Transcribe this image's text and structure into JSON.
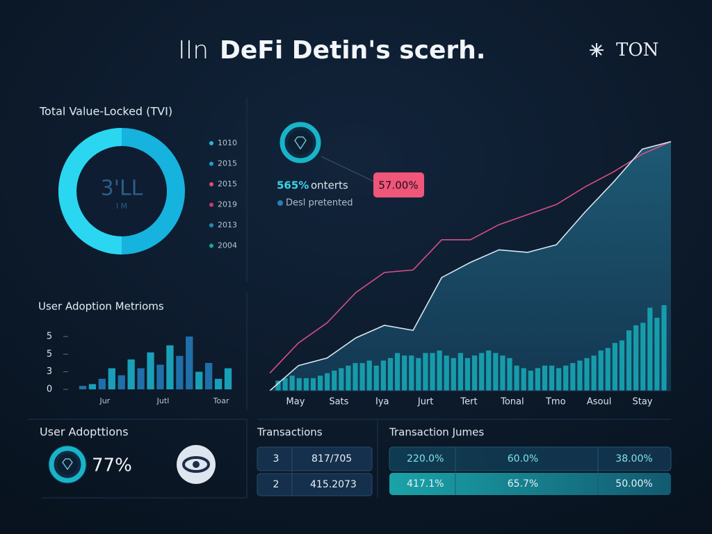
{
  "header": {
    "prefix": "IIn",
    "title": "DeFi Detin's scerh.",
    "brand": "TON"
  },
  "tvl": {
    "title": "Total Value-Locked (TVI)",
    "center": "3'LL",
    "center_sub": "I M",
    "legend": [
      {
        "label": "1010",
        "color": "#22b8e0"
      },
      {
        "label": "2015",
        "color": "#1f9fd0"
      },
      {
        "label": "2015",
        "color": "#e04a7a"
      },
      {
        "label": "2019",
        "color": "#c43f72"
      },
      {
        "label": "2013",
        "color": "#1a8fb8"
      },
      {
        "label": "2004",
        "color": "#18a89a"
      }
    ]
  },
  "chart_data": [
    {
      "type": "bar",
      "title": "User Adoption Metrioms",
      "categories": [
        null,
        null,
        "Jur",
        null,
        null,
        null,
        null,
        null,
        "Jutl",
        null,
        null,
        null,
        null,
        null,
        "Toar",
        null
      ],
      "values": [
        0.2,
        0.3,
        0.6,
        1.2,
        0.8,
        1.7,
        1.2,
        2.1,
        1.4,
        2.5,
        1.9,
        3.0,
        1.0,
        1.5,
        0.6,
        1.2
      ],
      "colors": [
        "#1f6fa8",
        "#1a9fb8",
        "#1f6fa8",
        "#1a9fb8",
        "#1f6fa8",
        "#1a9fb8",
        "#1f6fa8",
        "#1a9fb8",
        "#1f6fa8",
        "#1a9fb8",
        "#1f6fa8",
        "#1f6fa8",
        "#1a9fb8",
        "#1f6fa8",
        "#1a9fb8",
        "#1a9fb8"
      ],
      "ylim": [
        0,
        3
      ],
      "yticks": [
        0,
        {
          "value": 1,
          "label": "3"
        },
        {
          "value": 2,
          "label": "5"
        },
        {
          "value": 3,
          "label": "5"
        }
      ]
    },
    {
      "type": "area",
      "x_labels": [
        "May",
        "Sats",
        "Iya",
        "Jurt",
        "Tert",
        "Tonal",
        "Tmo",
        "Asoul",
        "Stay"
      ],
      "series": [
        {
          "color": "#d94f86",
          "values": [
            7,
            19,
            27,
            39,
            47,
            48,
            60,
            60,
            66,
            70,
            74,
            81,
            87,
            94,
            99
          ]
        },
        {
          "color": "#d8e6f0",
          "values": [
            0,
            10,
            13,
            21,
            26,
            24,
            45,
            51,
            56,
            55,
            58,
            71,
            83,
            96,
            99
          ]
        }
      ],
      "bars": {
        "color": "#17a6b4",
        "values": [
          4,
          5,
          6,
          5,
          5,
          5,
          6,
          7,
          8,
          9,
          10,
          11,
          11,
          12,
          10,
          12,
          13,
          15,
          14,
          14,
          13,
          15,
          15,
          16,
          14,
          13,
          15,
          13,
          14,
          15,
          16,
          15,
          14,
          13,
          10,
          9,
          8,
          9,
          10,
          10,
          9,
          10,
          11,
          12,
          13,
          14,
          16,
          17,
          19,
          20,
          24,
          26,
          27,
          33,
          29,
          34
        ]
      },
      "ylim": [
        0,
        100
      ],
      "annotations": {
        "highlight": "565%",
        "text": "onterts",
        "secondary": "Desl pretented",
        "callout": "57.00%"
      }
    }
  ],
  "adoption": {
    "title": "User Adopttions",
    "value": "77%"
  },
  "transactions": {
    "title": "Transactions",
    "rows": [
      [
        "3",
        "817/705"
      ],
      [
        "2",
        "415.2073"
      ]
    ]
  },
  "volumes": {
    "title": "Transaction Jumes",
    "rows": [
      [
        "220.0%",
        "60.0%",
        "38.00%"
      ],
      [
        "417.1%",
        "65.7%",
        "50.00%"
      ]
    ]
  }
}
